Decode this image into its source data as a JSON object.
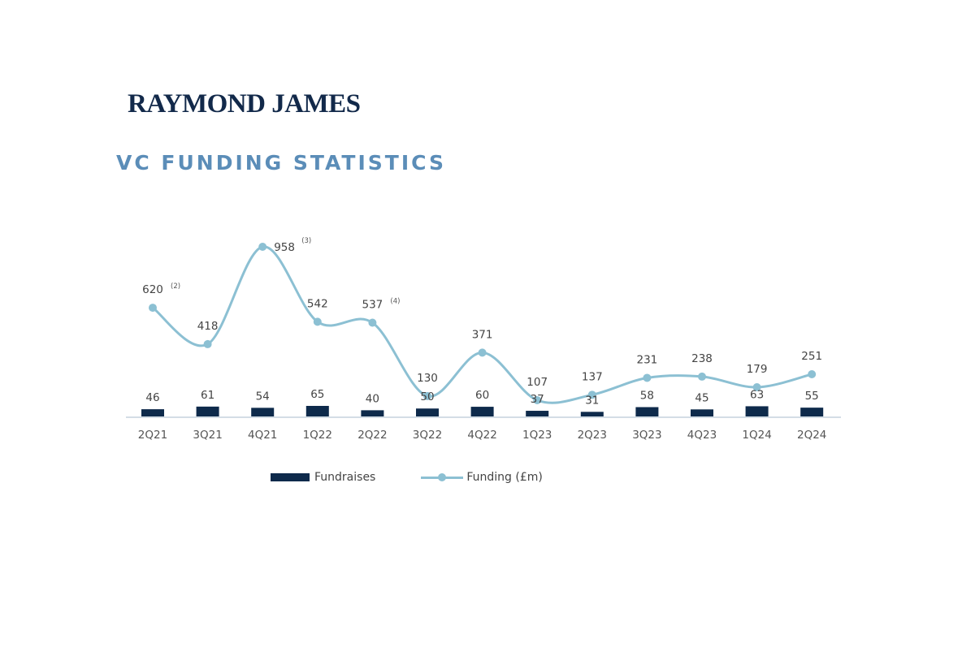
{
  "brand": {
    "logo_text": "RAYMOND JAMES"
  },
  "page_title": "VC FUNDING STATISTICS",
  "colors": {
    "bar": "#0e2a4b",
    "line": "#8cc0d3",
    "title": "#5b8db8",
    "axis": "#d4dde6"
  },
  "legend": {
    "bars": "Fundraises",
    "line": "Funding (£m)"
  },
  "chart_data": {
    "type": "bar",
    "categories": [
      "2Q21",
      "3Q21",
      "4Q21",
      "1Q22",
      "2Q22",
      "3Q22",
      "4Q22",
      "1Q23",
      "2Q23",
      "3Q23",
      "4Q23",
      "1Q24",
      "2Q24"
    ],
    "series": [
      {
        "name": "Fundraises",
        "type": "bar",
        "values": [
          46,
          61,
          54,
          65,
          40,
          50,
          60,
          37,
          31,
          58,
          45,
          63,
          55
        ]
      },
      {
        "name": "Funding (£m)",
        "type": "line",
        "smooth": true,
        "values": [
          620,
          418,
          958,
          542,
          537,
          130,
          371,
          107,
          137,
          231,
          238,
          179,
          251
        ]
      }
    ],
    "footnotes": [
      {
        "category": "2Q21",
        "text": "(2)"
      },
      {
        "category": "4Q21",
        "text": "(3)"
      },
      {
        "category": "2Q22",
        "text": "(4)"
      }
    ],
    "title": "VC FUNDING STATISTICS",
    "xlabel": "",
    "ylabel": "",
    "grid": false,
    "legend_position": "bottom"
  }
}
